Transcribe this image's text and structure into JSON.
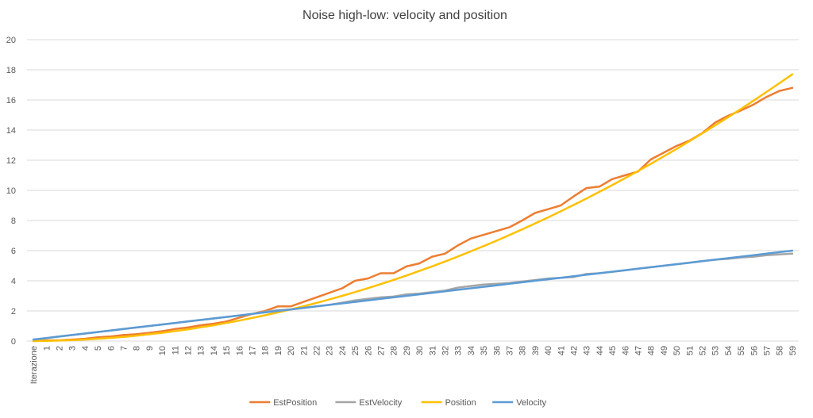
{
  "chart_data": {
    "type": "line",
    "title": "Noise high-low: velocity and position",
    "categories": [
      "Iterazione",
      "1",
      "2",
      "3",
      "4",
      "5",
      "6",
      "7",
      "8",
      "9",
      "10",
      "11",
      "12",
      "13",
      "14",
      "15",
      "16",
      "17",
      "18",
      "19",
      "20",
      "21",
      "22",
      "23",
      "24",
      "25",
      "26",
      "27",
      "28",
      "29",
      "30",
      "31",
      "32",
      "33",
      "34",
      "35",
      "36",
      "37",
      "38",
      "39",
      "40",
      "41",
      "42",
      "43",
      "44",
      "45",
      "46",
      "47",
      "48",
      "49",
      "50",
      "51",
      "52",
      "53",
      "54",
      "55",
      "56",
      "57",
      "58",
      "59"
    ],
    "series": [
      {
        "name": "EstPosition",
        "color": "#ed7d31",
        "values": [
          0,
          0.05,
          0.05,
          0.1,
          0.15,
          0.25,
          0.3,
          0.4,
          0.45,
          0.55,
          0.65,
          0.8,
          0.9,
          1.05,
          1.15,
          1.3,
          1.55,
          1.8,
          2.0,
          2.3,
          2.3,
          2.6,
          2.9,
          3.2,
          3.5,
          4.0,
          4.15,
          4.5,
          4.5,
          4.95,
          5.15,
          5.6,
          5.8,
          6.35,
          6.8,
          7.05,
          7.3,
          7.55,
          8.0,
          8.5,
          8.75,
          9.0,
          9.6,
          10.15,
          10.25,
          10.75,
          11.0,
          11.25,
          12.05,
          12.5,
          12.95,
          13.3,
          13.8,
          14.5,
          14.95,
          15.3,
          15.7,
          16.2,
          16.6,
          16.8
        ]
      },
      {
        "name": "EstVelocity",
        "color": "#a5a5a5",
        "values": [
          0.1,
          0.2,
          0.3,
          0.4,
          0.5,
          0.6,
          0.7,
          0.8,
          0.9,
          1.0,
          1.1,
          1.2,
          1.3,
          1.4,
          1.5,
          1.6,
          1.7,
          1.8,
          1.95,
          2.05,
          2.1,
          2.2,
          2.3,
          2.4,
          2.55,
          2.7,
          2.8,
          2.9,
          2.95,
          3.1,
          3.15,
          3.25,
          3.35,
          3.55,
          3.65,
          3.75,
          3.8,
          3.85,
          3.95,
          4.05,
          4.15,
          4.2,
          4.25,
          4.45,
          4.5,
          4.6,
          4.7,
          4.8,
          4.9,
          5.0,
          5.1,
          5.2,
          5.3,
          5.4,
          5.45,
          5.55,
          5.6,
          5.7,
          5.75,
          5.8
        ]
      },
      {
        "name": "Position",
        "color": "#ffc000",
        "values": [
          0,
          0.01,
          0.03,
          0.06,
          0.1,
          0.15,
          0.21,
          0.28,
          0.36,
          0.45,
          0.55,
          0.66,
          0.78,
          0.91,
          1.05,
          1.2,
          1.36,
          1.53,
          1.71,
          1.9,
          2.1,
          2.31,
          2.53,
          2.76,
          3,
          3.25,
          3.51,
          3.78,
          4.06,
          4.35,
          4.65,
          4.96,
          5.28,
          5.61,
          5.95,
          6.3,
          6.66,
          7.03,
          7.41,
          7.8,
          8.2,
          8.61,
          9.03,
          9.46,
          9.9,
          10.35,
          10.81,
          11.28,
          11.76,
          12.25,
          12.75,
          13.26,
          13.78,
          14.31,
          14.85,
          15.4,
          15.96,
          16.53,
          17.11,
          17.7
        ]
      },
      {
        "name": "Velocity",
        "color": "#5b9bd5",
        "values": [
          0.1,
          0.2,
          0.3,
          0.4,
          0.5,
          0.6,
          0.7,
          0.8,
          0.9,
          1.0,
          1.1,
          1.2,
          1.3,
          1.4,
          1.5,
          1.6,
          1.7,
          1.8,
          1.9,
          2.0,
          2.1,
          2.2,
          2.3,
          2.4,
          2.5,
          2.6,
          2.7,
          2.8,
          2.9,
          3.0,
          3.1,
          3.2,
          3.3,
          3.4,
          3.5,
          3.6,
          3.7,
          3.8,
          3.9,
          4.0,
          4.1,
          4.2,
          4.3,
          4.4,
          4.5,
          4.6,
          4.7,
          4.8,
          4.9,
          5.0,
          5.1,
          5.2,
          5.3,
          5.4,
          5.5,
          5.6,
          5.7,
          5.8,
          5.9,
          6.0
        ]
      }
    ],
    "ylim": [
      0,
      20
    ],
    "yticks": [
      0,
      2,
      4,
      6,
      8,
      10,
      12,
      14,
      16,
      18,
      20
    ],
    "grid": true,
    "legend": "bottom"
  }
}
